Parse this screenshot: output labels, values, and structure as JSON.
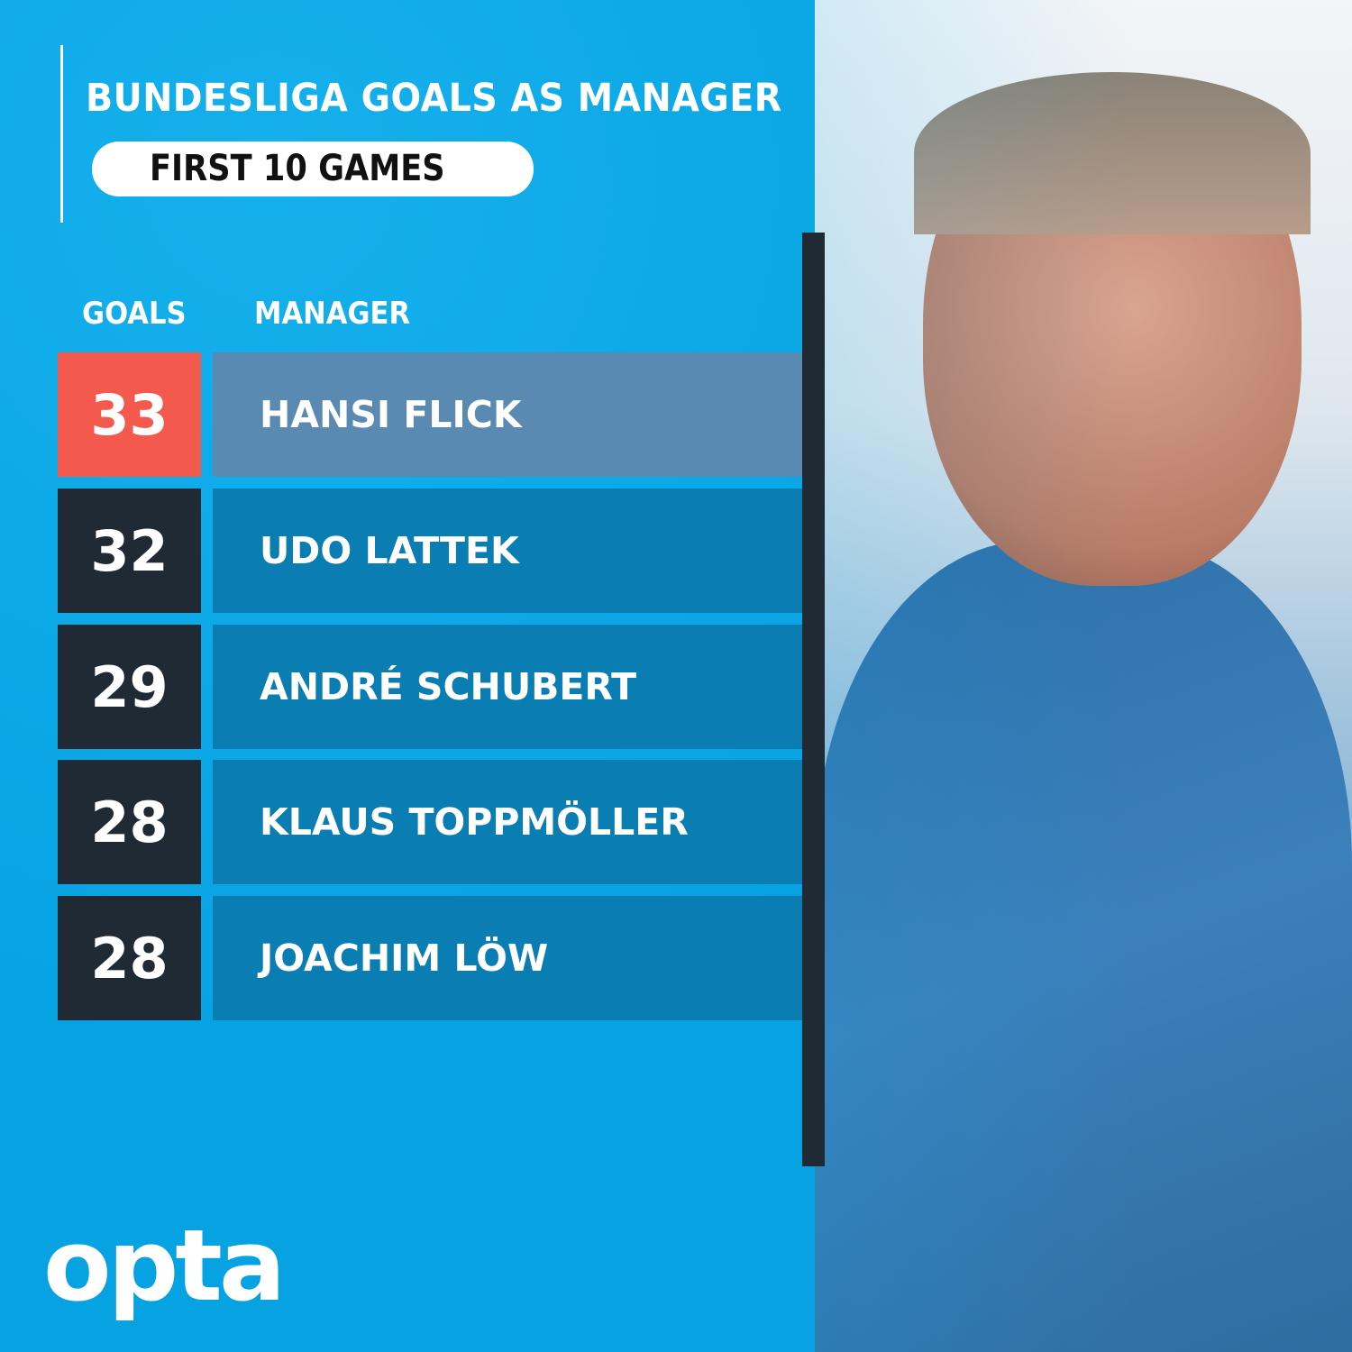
{
  "title": "BUNDESLIGA GOALS AS MANAGER",
  "subtitle": "FIRST 10 GAMES",
  "headers": {
    "goals": "GOALS",
    "manager": "MANAGER"
  },
  "brand": "opta",
  "colors": {
    "background": "#0aa9e8",
    "highlight_number": "#f35a4d",
    "highlight_row": "#5a89b1",
    "row": "#0a7db3",
    "number_box": "#1f2a35"
  },
  "chart_data": {
    "type": "table",
    "title": "BUNDESLIGA GOALS AS MANAGER",
    "subtitle": "FIRST 10 GAMES",
    "columns": [
      "GOALS",
      "MANAGER"
    ],
    "rows": [
      {
        "goals": "33",
        "manager": "HANSI FLICK",
        "highlighted": true
      },
      {
        "goals": "32",
        "manager": "UDO LATTEK"
      },
      {
        "goals": "29",
        "manager": "ANDRÉ SCHUBERT"
      },
      {
        "goals": "28",
        "manager": "KLAUS TOPPMÖLLER"
      },
      {
        "goals": "28",
        "manager": "JOACHIM LÖW"
      }
    ]
  }
}
